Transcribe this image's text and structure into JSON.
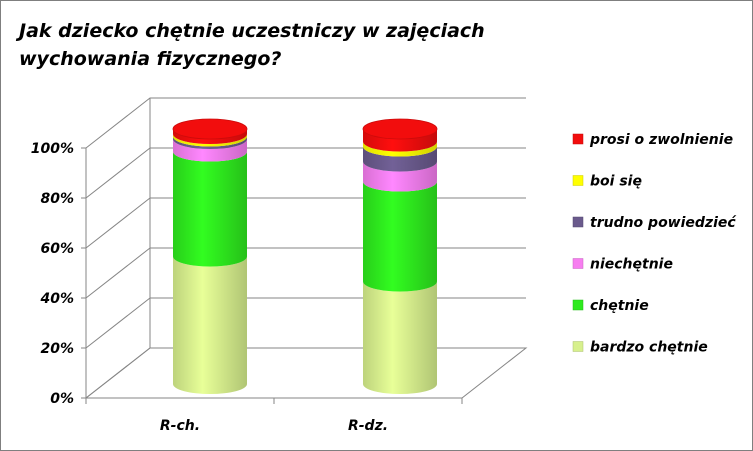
{
  "chart_data": {
    "type": "bar",
    "stacked": true,
    "three_d": "cylinder",
    "title": "Jak dziecko chętnie uczestniczy w zajęciach wychowania fizycznego?",
    "categories": [
      "R-ch.",
      "R-dz."
    ],
    "ylim": [
      0,
      100
    ],
    "y_ticks": [
      "0%",
      "20%",
      "40%",
      "60%",
      "80%",
      "100%"
    ],
    "y_tick_values": [
      0,
      20,
      40,
      60,
      80,
      100
    ],
    "legend_position": "right",
    "series": [
      {
        "name": "bardzo chętnie",
        "color": "#d7f08d",
        "values": [
          51,
          41
        ]
      },
      {
        "name": "chętnie",
        "color": "#2eea1e",
        "values": [
          42,
          40
        ]
      },
      {
        "name": "niechętnie",
        "color": "#f77ef0",
        "values": [
          5,
          8
        ]
      },
      {
        "name": "trudno powiedzieć",
        "color": "#6a5a8c",
        "values": [
          1,
          6
        ]
      },
      {
        "name": "boi się",
        "color": "#ffff00",
        "values": [
          1,
          2
        ]
      },
      {
        "name": "prosi o zwolnienie",
        "color": "#f20d0d",
        "values": [
          2,
          5
        ]
      }
    ]
  }
}
